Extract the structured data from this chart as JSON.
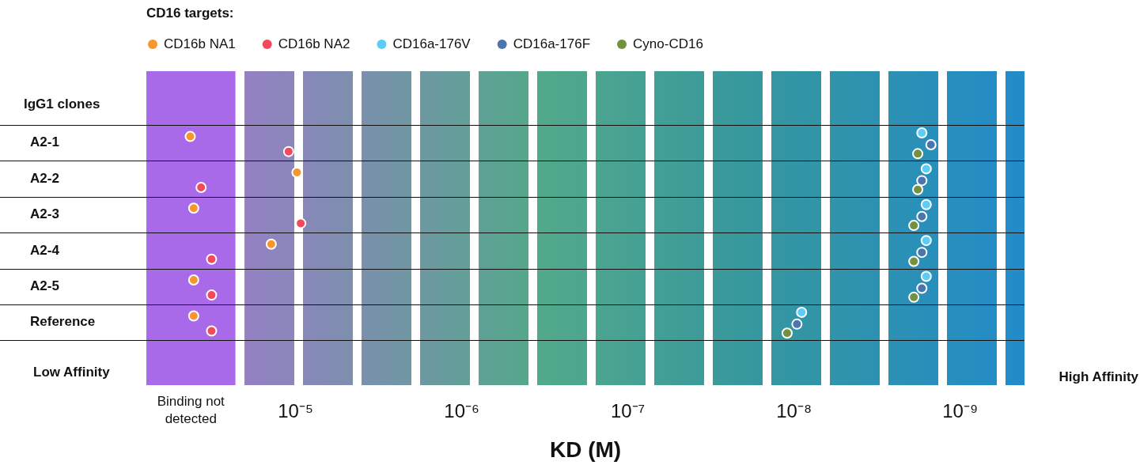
{
  "chart_data": {
    "type": "scatter",
    "orientation": "horizontal",
    "legend_title": "CD16 targets:",
    "xlabel": "KD (M)",
    "ylabel": "IgG1 clones",
    "categories": [
      "A2-1",
      "A2-2",
      "A2-3",
      "A2-4",
      "A2-5",
      "Reference"
    ],
    "log": "x",
    "xlim": [
      7.9e-05,
      4.1e-10
    ],
    "xticks": [
      {
        "value": 1e-05,
        "label": "10⁻⁵"
      },
      {
        "value": 1e-06,
        "label": "10⁻⁶"
      },
      {
        "value": 1e-07,
        "label": "10⁻⁷"
      },
      {
        "value": 1e-08,
        "label": "10⁻⁸"
      },
      {
        "value": 1e-09,
        "label": "10⁻⁹"
      }
    ],
    "grid": "y",
    "legend": "top left",
    "marker": "circle",
    "bands": [
      {
        "axis": "x",
        "from": 7.9e-05,
        "to": 2.3e-05,
        "label": "Binding not detected",
        "color": "#a86ae8"
      }
    ],
    "annotations": [
      "Low Affinity",
      "High Affinity"
    ],
    "series": [
      {
        "name": "CD16b NA1",
        "color": "#f7962e",
        "values": [
          4.3e-05,
          9.8e-06,
          4.1e-05,
          1.4e-05,
          4.1e-05,
          4.1e-05
        ]
      },
      {
        "name": "CD16b NA2",
        "color": "#f2495c",
        "values": [
          1.1e-05,
          3.7e-05,
          9.3e-06,
          3.2e-05,
          3.2e-05,
          3.2e-05
        ]
      },
      {
        "name": "CD16a-176V",
        "color": "#5acdf8",
        "values": [
          1.7e-09,
          1.6e-09,
          1.6e-09,
          1.6e-09,
          1.6e-09,
          9e-09
        ]
      },
      {
        "name": "CD16a-176F",
        "color": "#4a76b0",
        "values": [
          1.5e-09,
          1.7e-09,
          1.7e-09,
          1.7e-09,
          1.7e-09,
          9.6e-09
        ]
      },
      {
        "name": "Cyno-CD16",
        "color": "#74913f",
        "values": [
          1.8e-09,
          1.8e-09,
          1.9e-09,
          1.9e-09,
          1.9e-09,
          1.1e-08
        ]
      }
    ]
  }
}
